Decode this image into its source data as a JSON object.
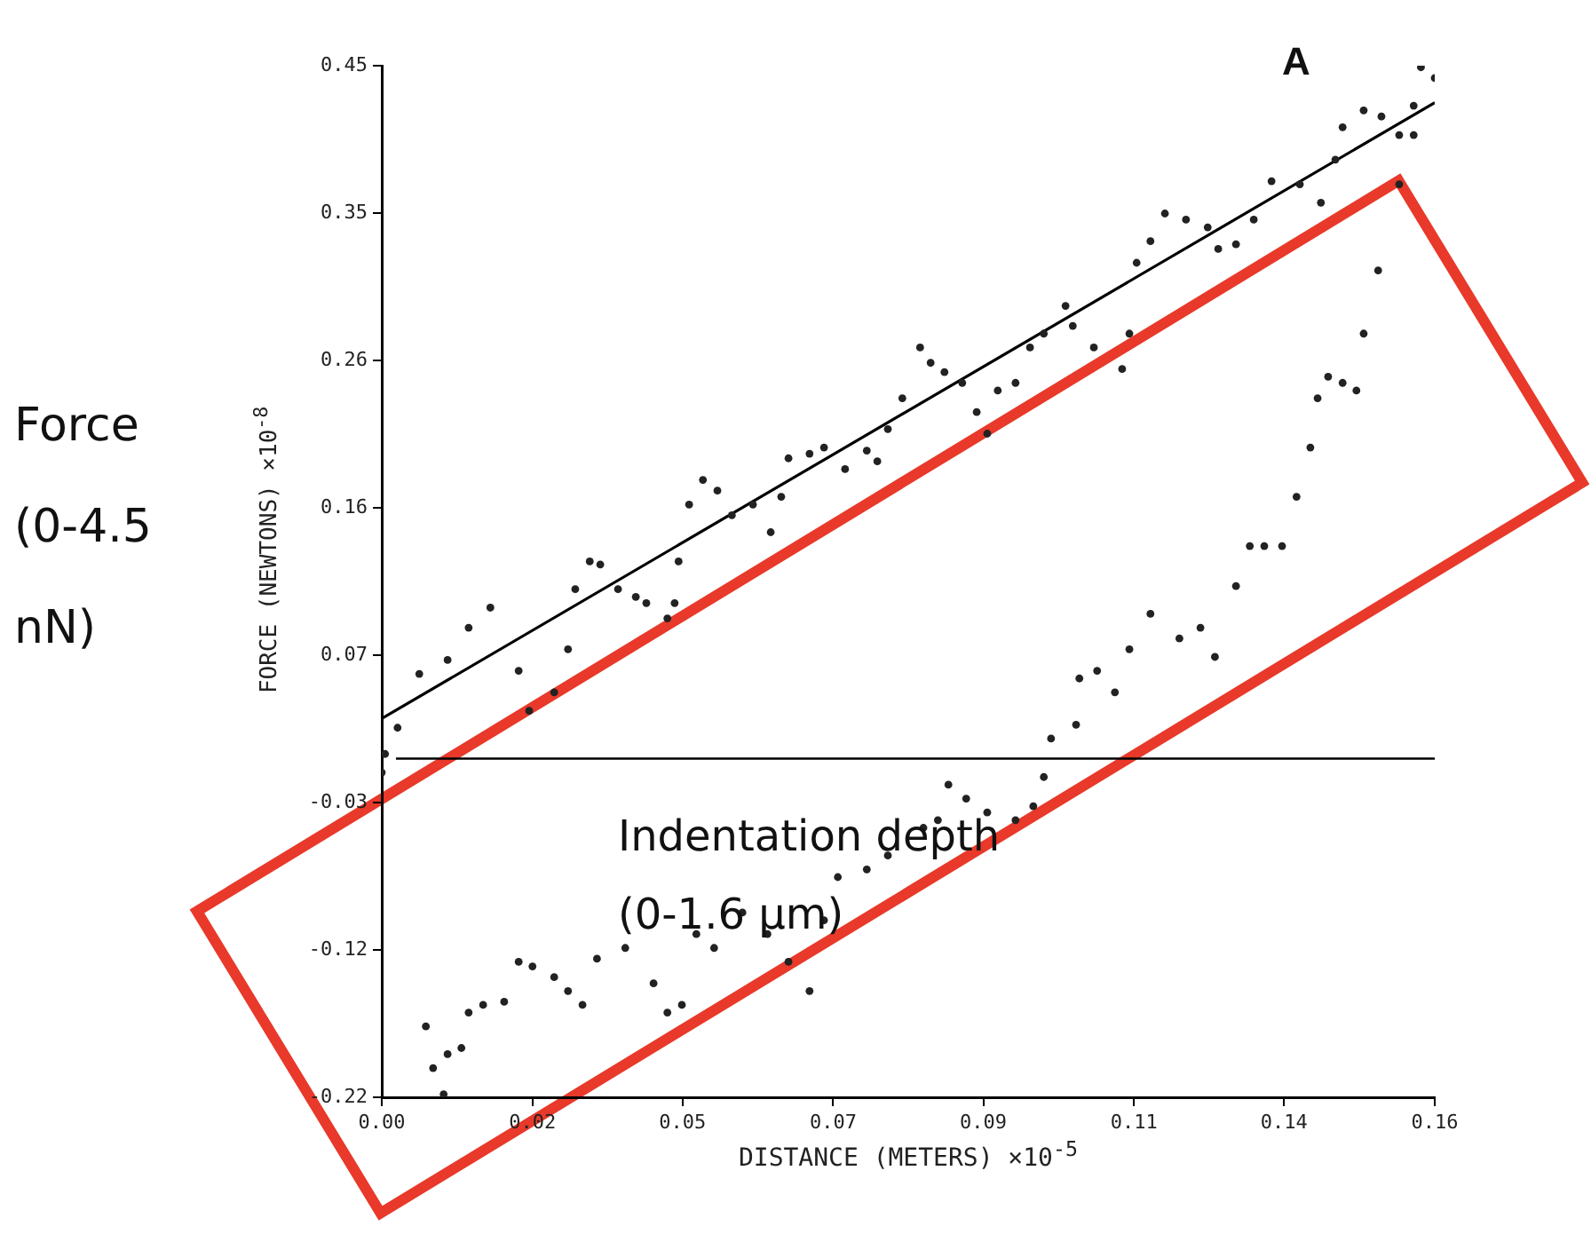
{
  "chart_data": {
    "type": "scatter",
    "xlabel": "DISTANCE (METERS) ×10$^{-5}$",
    "ylabel": "FORCE (NEWTONS) ×10$^{-8}$",
    "xlim": [
      0,
      0.16
    ],
    "ylim": [
      -0.22,
      0.45
    ],
    "xticks": [
      {
        "value": 0,
        "label": "0.00"
      },
      {
        "value": 0.0229,
        "label": "0.02"
      },
      {
        "value": 0.0457,
        "label": "0.05"
      },
      {
        "value": 0.0686,
        "label": "0.07"
      },
      {
        "value": 0.0914,
        "label": "0.09"
      },
      {
        "value": 0.1143,
        "label": "0.11"
      },
      {
        "value": 0.1371,
        "label": "0.14"
      },
      {
        "value": 0.16,
        "label": "0.16"
      }
    ],
    "yticks": [
      {
        "value": -0.22,
        "label": "-0.22"
      },
      {
        "value": -0.1243,
        "label": "-0.12"
      },
      {
        "value": -0.0286,
        "label": "-0.03"
      },
      {
        "value": 0.0671,
        "label": "0.07"
      },
      {
        "value": 0.1629,
        "label": "0.16"
      },
      {
        "value": 0.2586,
        "label": "0.26"
      },
      {
        "value": 0.3543,
        "label": "0.35"
      },
      {
        "value": 0.45,
        "label": "0.45"
      }
    ],
    "grid": false,
    "legend": false,
    "marker": "circle",
    "ref_lines": [
      {
        "axis": "y",
        "value": 0,
        "color": "#000000"
      }
    ],
    "annotations": [
      "A",
      "Force (0-4.5 nN)",
      "Indentation depth (0-1.6 μm)"
    ],
    "series": [
      {
        "type": "scatter",
        "color": "#222222",
        "x": [
          0,
          0.0005,
          0.0024,
          0.0057,
          0.01,
          0.0132,
          0.0165,
          0.0208,
          0.0224,
          0.0262,
          0.0283,
          0.0294,
          0.0316,
          0.0332,
          0.0359,
          0.0386,
          0.0402,
          0.0434,
          0.0445,
          0.0451,
          0.0467,
          0.0488,
          0.051,
          0.0532,
          0.0564,
          0.0591,
          0.0607,
          0.0618,
          0.065,
          0.0672,
          0.0704,
          0.0737,
          0.0753,
          0.0769,
          0.0791,
          0.0818,
          0.0834,
          0.0855,
          0.0882,
          0.0904,
          0.092,
          0.0936,
          0.0963,
          0.0985,
          0.1006,
          0.1039,
          0.105,
          0.1082,
          0.1125,
          0.1136,
          0.1147,
          0.1168,
          0.119,
          0.1222,
          0.1255,
          0.1271,
          0.1298,
          0.1325,
          0.1352,
          0.1395,
          0.1427,
          0.1449,
          0.146,
          0.1492,
          0.1519,
          0.1546,
          0.1568,
          0.1579,
          0.16
        ],
        "values": [
          -0.009,
          0.003,
          0.02,
          0.055,
          0.064,
          0.085,
          0.098,
          0.057,
          0.031,
          0.043,
          0.071,
          0.11,
          0.128,
          0.126,
          0.11,
          0.105,
          0.101,
          0.091,
          0.101,
          0.128,
          0.165,
          0.181,
          0.174,
          0.158,
          0.165,
          0.147,
          0.17,
          0.195,
          0.198,
          0.202,
          0.188,
          0.2,
          0.193,
          0.214,
          0.234,
          0.267,
          0.257,
          0.251,
          0.244,
          0.225,
          0.211,
          0.239,
          0.244,
          0.267,
          0.276,
          0.294,
          0.281,
          0.267,
          0.253,
          0.276,
          0.322,
          0.336,
          0.354,
          0.35,
          0.345,
          0.331,
          0.334,
          0.35,
          0.375,
          0.373,
          0.361,
          0.389,
          0.41,
          0.421,
          0.417,
          0.405,
          0.424,
          0.449,
          0.442
        ]
      },
      {
        "type": "scatter",
        "color": "#222222",
        "x": [
          0.1568,
          0.1546,
          0.1514,
          0.1492,
          0.1481,
          0.146,
          0.1438,
          0.1422,
          0.1411,
          0.139,
          0.1368,
          0.1341,
          0.1319,
          0.1298,
          0.1266,
          0.1244,
          0.1212,
          0.1168,
          0.1136,
          0.1114,
          0.1087,
          0.106,
          0.1055,
          0.1017,
          0.1006,
          0.099,
          0.0963,
          0.092,
          0.0888,
          0.0861,
          0.0845,
          0.0823,
          0.0769,
          0.0737,
          0.0693,
          0.0672,
          0.065,
          0.0618,
          0.0586,
          0.0548,
          0.0505,
          0.0478,
          0.0456,
          0.0434,
          0.0413,
          0.037,
          0.0327,
          0.0305,
          0.0283,
          0.0262,
          0.0229,
          0.0208,
          0.0186,
          0.0154,
          0.0132,
          0.0121,
          0.01,
          0.0094,
          0.0078,
          0.0067
        ],
        "values": [
          0.405,
          0.373,
          0.317,
          0.276,
          0.239,
          0.244,
          0.248,
          0.234,
          0.202,
          0.17,
          0.138,
          0.138,
          0.138,
          0.112,
          0.066,
          0.085,
          0.078,
          0.094,
          0.071,
          0.043,
          0.057,
          0.052,
          0.022,
          0.013,
          -0.012,
          -0.031,
          -0.04,
          -0.035,
          -0.026,
          -0.017,
          -0.04,
          -0.045,
          -0.063,
          -0.072,
          -0.077,
          -0.105,
          -0.151,
          -0.132,
          -0.114,
          -0.1,
          -0.123,
          -0.114,
          -0.16,
          -0.165,
          -0.146,
          -0.123,
          -0.13,
          -0.16,
          -0.151,
          -0.142,
          -0.135,
          -0.132,
          -0.158,
          -0.16,
          -0.165,
          -0.188,
          -0.192,
          -0.218,
          -0.201,
          -0.174
        ]
      },
      {
        "type": "line",
        "color": "#000000",
        "marker": "none",
        "line_style": "solid",
        "x": [
          0,
          0.16
        ],
        "values": [
          0.026,
          0.426
        ]
      }
    ]
  }
}
